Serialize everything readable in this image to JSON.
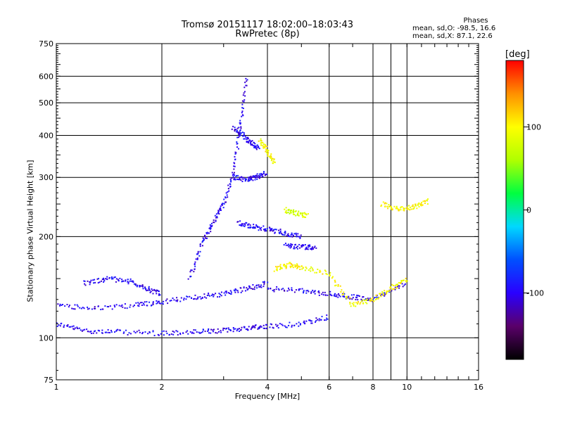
{
  "header": {
    "title": "Tromsø 20151117 18:02:00–18:03:43",
    "subtitle": "RwPretec (8p)"
  },
  "stats": {
    "heading": "Phases",
    "line_o": "mean, sd,O: -98.5, 16.6",
    "line_x": "mean, sd,X: 87.1, 22.6"
  },
  "colorbar": {
    "unit": "[deg]",
    "ticks": [
      "100",
      "0",
      "-100"
    ],
    "tick_values": [
      100,
      0,
      -100
    ],
    "range": [
      -180,
      180
    ],
    "colors": [
      "#000000",
      "#5a006a",
      "#2a00ff",
      "#0050ff",
      "#00d8ff",
      "#00ff40",
      "#b0ff00",
      "#ffff00",
      "#ff9000",
      "#ff0000"
    ]
  },
  "chart_data": {
    "type": "scatter",
    "xlabel": "Frequency [MHz]",
    "ylabel": "Stationary phase Virtual Height [km]",
    "x_scale": "log",
    "y_scale": "log",
    "xlim": [
      1,
      16
    ],
    "ylim": [
      75,
      750
    ],
    "x_ticks": [
      1,
      2,
      4,
      6,
      8,
      10,
      16
    ],
    "x_minor_ticks": [
      9
    ],
    "y_ticks": [
      75,
      100,
      200,
      300,
      400,
      500,
      600,
      750
    ],
    "grid": true,
    "colorbar_label": "[deg]",
    "traces": [
      {
        "name": "",
        "phase": -100,
        "points": [
          [
            1.0,
            110
          ],
          [
            1.2,
            105
          ],
          [
            1.5,
            104
          ],
          [
            2.0,
            103
          ],
          [
            2.5,
            104
          ],
          [
            3.0,
            105
          ],
          [
            3.5,
            107
          ],
          [
            4.0,
            108
          ],
          [
            5.0,
            110
          ],
          [
            6.0,
            115
          ]
        ]
      },
      {
        "name": "",
        "phase": -100,
        "points": [
          [
            1.0,
            125
          ],
          [
            1.3,
            122
          ],
          [
            1.7,
            125
          ],
          [
            2.0,
            128
          ],
          [
            2.5,
            132
          ],
          [
            3.0,
            135
          ],
          [
            3.5,
            140
          ],
          [
            4.0,
            145
          ]
        ]
      },
      {
        "name": "",
        "phase": -100,
        "points": [
          [
            1.2,
            145
          ],
          [
            1.4,
            150
          ],
          [
            1.6,
            148
          ],
          [
            1.8,
            140
          ],
          [
            2.0,
            135
          ]
        ]
      },
      {
        "name": "",
        "phase": -100,
        "points": [
          [
            2.4,
            150
          ],
          [
            2.6,
            190
          ],
          [
            2.8,
            220
          ],
          [
            3.0,
            250
          ],
          [
            3.2,
            310
          ],
          [
            3.35,
            430
          ],
          [
            3.5,
            600
          ]
        ]
      },
      {
        "name": "",
        "phase": -100,
        "points": [
          [
            3.2,
            300
          ],
          [
            3.5,
            295
          ],
          [
            3.7,
            300
          ],
          [
            4.0,
            310
          ]
        ]
      },
      {
        "name": "",
        "phase": -100,
        "points": [
          [
            3.2,
            420
          ],
          [
            3.4,
            400
          ],
          [
            3.6,
            380
          ],
          [
            3.8,
            365
          ]
        ]
      },
      {
        "name": "",
        "phase": -100,
        "points": [
          [
            3.3,
            220
          ],
          [
            3.6,
            215
          ],
          [
            4.0,
            210
          ],
          [
            4.5,
            205
          ],
          [
            5.0,
            200
          ]
        ]
      },
      {
        "name": "",
        "phase": -100,
        "points": [
          [
            4.0,
            140
          ],
          [
            5.0,
            138
          ],
          [
            6.0,
            135
          ],
          [
            7.0,
            132
          ],
          [
            8.0,
            130
          ],
          [
            10.0,
            145
          ]
        ]
      },
      {
        "name": "",
        "phase": -100,
        "points": [
          [
            4.5,
            188
          ],
          [
            5.0,
            186
          ],
          [
            5.5,
            186
          ]
        ]
      },
      {
        "name": "",
        "phase": 100,
        "points": [
          [
            3.8,
            385
          ],
          [
            4.0,
            360
          ],
          [
            4.2,
            330
          ]
        ]
      },
      {
        "name": "",
        "phase": 100,
        "points": [
          [
            4.2,
            160
          ],
          [
            4.6,
            165
          ],
          [
            5.0,
            162
          ],
          [
            6.0,
            155
          ],
          [
            7.0,
            125
          ],
          [
            8.0,
            130
          ],
          [
            9.0,
            140
          ],
          [
            10.0,
            150
          ]
        ]
      },
      {
        "name": "",
        "phase": 80,
        "points": [
          [
            4.5,
            240
          ],
          [
            4.8,
            235
          ],
          [
            5.2,
            230
          ]
        ]
      },
      {
        "name": "",
        "phase": 100,
        "points": [
          [
            8.5,
            250
          ],
          [
            9.5,
            240
          ],
          [
            10.5,
            245
          ],
          [
            11.5,
            255
          ]
        ]
      }
    ]
  }
}
